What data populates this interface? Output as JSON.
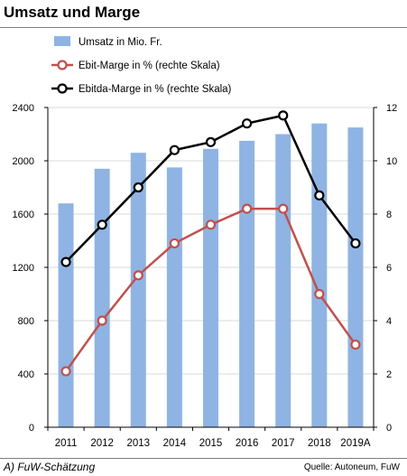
{
  "title": "Umsatz und Marge",
  "footnote": "A) FuW-Schätzung",
  "source": "Quelle: Autoneum, FuW",
  "colors": {
    "bars": "#8fb4e3",
    "ebit": "#c0504d",
    "ebitda": "#000000",
    "grid": "#d9d9d9"
  },
  "chart_data": {
    "type": "bar",
    "categories": [
      "2011",
      "2012",
      "2013",
      "2014",
      "2015",
      "2016",
      "2017",
      "2018",
      "2019A"
    ],
    "series": [
      {
        "name": "Umsatz in Mio. Fr.",
        "type": "bar",
        "axis": "left",
        "values": [
          1680,
          1940,
          2060,
          1950,
          2090,
          2150,
          2200,
          2280,
          2250
        ]
      },
      {
        "name": "Ebit-Marge in % (rechte Skala)",
        "type": "line",
        "axis": "right",
        "values": [
          2.1,
          4.0,
          5.7,
          6.9,
          7.6,
          8.2,
          8.2,
          5.0,
          3.1
        ]
      },
      {
        "name": "Ebitda-Marge in % (rechte Skala)",
        "type": "line",
        "axis": "right",
        "values": [
          6.2,
          7.6,
          9.0,
          10.4,
          10.7,
          11.4,
          11.7,
          8.7,
          6.9
        ]
      }
    ],
    "ylim_left": [
      0,
      2400
    ],
    "yticks_left": [
      "0",
      "400",
      "800",
      "1200",
      "1600",
      "2000",
      "2400"
    ],
    "ylim_right": [
      0,
      12
    ],
    "yticks_right": [
      "0",
      "2",
      "4",
      "6",
      "8",
      "10",
      "12"
    ],
    "grid": true,
    "legend": "top-left"
  }
}
